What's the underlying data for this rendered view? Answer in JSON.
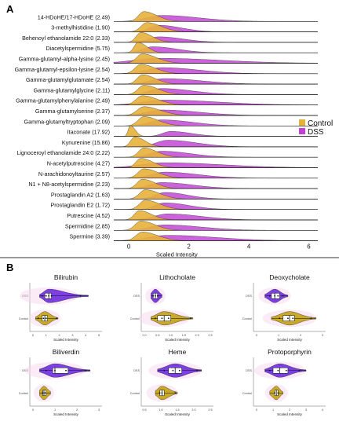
{
  "colors": {
    "control": "#e8b13a",
    "dss": "#c23fd6",
    "violin_dss": "#7b3fe4",
    "violin_control": "#c9a927",
    "baseline": "#000000"
  },
  "chart_data": [
    {
      "panel": "A",
      "type": "area",
      "title": "",
      "xlabel": "Scaled Intensity",
      "xlim": [
        -0.5,
        6.3
      ],
      "xticks": [
        0,
        2,
        4,
        6
      ],
      "legend": {
        "placement": "right",
        "entries": [
          "Control",
          "DSS"
        ]
      },
      "series": [
        {
          "label": "14-HDoHE/17-HDoHE (2.49)",
          "control": {
            "mode": 0.5,
            "width": 0.32,
            "height": 0.9
          },
          "dss": {
            "mode": 1.1,
            "width": 0.9,
            "height": 0.55
          }
        },
        {
          "label": "3-methylhistidine (1.90)",
          "control": {
            "mode": 0.6,
            "width": 0.35,
            "height": 0.85
          },
          "dss": {
            "mode": 1.0,
            "width": 0.55,
            "height": 0.6
          }
        },
        {
          "label": "Behenoyl ethanolamide 22:0 (2.33)",
          "control": {
            "mode": 0.4,
            "width": 0.28,
            "height": 0.9
          },
          "dss": {
            "mode": 1.0,
            "width": 0.6,
            "height": 0.5
          }
        },
        {
          "label": "Diacetylspermidine (5.75)",
          "control": {
            "mode": 0.3,
            "width": 0.22,
            "height": 0.95
          },
          "dss": {
            "mode": 0.8,
            "width": 0.6,
            "height": 0.55
          }
        },
        {
          "label": "Gamma-glutamyl-alpha-lysine (2.45)",
          "control": {
            "mode": 0.45,
            "width": 0.35,
            "height": 0.85
          },
          "dss": {
            "mode": 1.0,
            "width": 1.5,
            "height": 0.45
          }
        },
        {
          "label": "Gamma-glutamyl-epsilon-lysine (2.54)",
          "control": {
            "mode": 0.4,
            "width": 0.35,
            "height": 0.85
          },
          "dss": {
            "mode": 1.1,
            "width": 0.9,
            "height": 0.55
          }
        },
        {
          "label": "Gamma-glutamylglutamate (2.54)",
          "control": {
            "mode": 0.45,
            "width": 0.32,
            "height": 0.85
          },
          "dss": {
            "mode": 1.2,
            "width": 0.9,
            "height": 0.5
          }
        },
        {
          "label": "Gamma-glutamylglycine (2.11)",
          "control": {
            "mode": 0.5,
            "width": 0.35,
            "height": 0.85
          },
          "dss": {
            "mode": 1.1,
            "width": 0.75,
            "height": 0.55
          }
        },
        {
          "label": "Gamma-glutamylphenylalanine (2.49)",
          "control": {
            "mode": 0.45,
            "width": 0.38,
            "height": 0.85
          },
          "dss": {
            "mode": 1.2,
            "width": 1.3,
            "height": 0.45
          }
        },
        {
          "label": "Gamma-glutamylserine (2.37)",
          "control": {
            "mode": 0.5,
            "width": 0.4,
            "height": 0.8
          },
          "dss": {
            "mode": 1.1,
            "width": 0.9,
            "height": 0.5
          }
        },
        {
          "label": "Gamma-glutamyltryptophan (2.09)",
          "control": {
            "mode": 0.5,
            "width": 0.35,
            "height": 0.85
          },
          "dss": {
            "mode": 1.1,
            "width": 0.75,
            "height": 0.55
          }
        },
        {
          "label": "Itaconate (17.92)",
          "control": {
            "mode": 0.05,
            "width": 0.12,
            "height": 1.0
          },
          "dss": {
            "mode": 1.4,
            "width": 0.5,
            "height": 0.45
          }
        },
        {
          "label": "Kynurenine (15.86)",
          "control": {
            "mode": 0.2,
            "width": 0.25,
            "height": 0.9
          },
          "dss": {
            "mode": 1.3,
            "width": 0.7,
            "height": 0.6
          }
        },
        {
          "label": "Lignoceroyl ethanolamide 24:0 (2.22)",
          "control": {
            "mode": 0.5,
            "width": 0.32,
            "height": 0.85
          },
          "dss": {
            "mode": 1.1,
            "width": 0.7,
            "height": 0.55
          }
        },
        {
          "label": "N-acetylputrescine (4.27)",
          "control": {
            "mode": 0.4,
            "width": 0.3,
            "height": 0.85
          },
          "dss": {
            "mode": 1.2,
            "width": 1.4,
            "height": 0.45
          }
        },
        {
          "label": "N-arachidonoyltaurine (2.57)",
          "control": {
            "mode": 0.5,
            "width": 0.35,
            "height": 0.85
          },
          "dss": {
            "mode": 1.2,
            "width": 0.8,
            "height": 0.55
          }
        },
        {
          "label": "N1 + N8-acetylspermidine (2.23)",
          "control": {
            "mode": 0.45,
            "width": 0.32,
            "height": 0.85
          },
          "dss": {
            "mode": 1.1,
            "width": 0.75,
            "height": 0.55
          }
        },
        {
          "label": "Prostaglandin A2 (1.63)",
          "control": {
            "mode": 0.55,
            "width": 0.35,
            "height": 0.85
          },
          "dss": {
            "mode": 1.2,
            "width": 0.55,
            "height": 0.6
          }
        },
        {
          "label": "Prostaglandin E2 (1.72)",
          "control": {
            "mode": 0.55,
            "width": 0.35,
            "height": 0.85
          },
          "dss": {
            "mode": 1.2,
            "width": 0.6,
            "height": 0.6
          }
        },
        {
          "label": "Putrescine (4.52)",
          "control": {
            "mode": 0.35,
            "width": 0.3,
            "height": 0.85
          },
          "dss": {
            "mode": 1.3,
            "width": 0.8,
            "height": 0.55
          }
        },
        {
          "label": "Spermidine (2.85)",
          "control": {
            "mode": 0.4,
            "width": 0.35,
            "height": 0.85
          },
          "dss": {
            "mode": 1.2,
            "width": 0.9,
            "height": 0.5
          }
        },
        {
          "label": "Spermine (3.39)",
          "control": {
            "mode": 0.45,
            "width": 0.38,
            "height": 0.8
          },
          "dss": {
            "mode": 1.3,
            "width": 1.2,
            "height": 0.5
          }
        }
      ]
    },
    {
      "panel": "B",
      "type": "violin",
      "xlabel": "Scaled Intensity",
      "groups": [
        "DSS",
        "Control"
      ],
      "plots": [
        {
          "title": "Bilirubin",
          "xlim": [
            0,
            5
          ],
          "xticks": [
            "0",
            "1",
            "2",
            "3",
            "4",
            "5"
          ],
          "dss": {
            "median": 1.2,
            "q1": 0.9,
            "q3": 1.4,
            "min": 0.5,
            "max": 4.2,
            "points": [
              0.7,
              1.0,
              1.2,
              1.4,
              3.6
            ]
          },
          "control": {
            "median": 0.9,
            "q1": 0.7,
            "q3": 1.1,
            "min": 0.2,
            "max": 1.9,
            "points": [
              0.4,
              0.8,
              1.0,
              1.8
            ]
          }
        },
        {
          "title": "Lithocholate",
          "xlim": [
            0,
            3
          ],
          "xticks": [
            "0.0",
            "0.5",
            "1.0",
            "1.5",
            "2.0",
            "2.5"
          ],
          "dss": {
            "median": 0.5,
            "q1": 0.4,
            "q3": 0.6,
            "min": 0.3,
            "max": 0.8,
            "points": [
              0.4,
              0.5,
              0.6
            ]
          },
          "control": {
            "median": 0.9,
            "q1": 0.6,
            "q3": 1.2,
            "min": 0.3,
            "max": 2.2,
            "points": [
              0.5,
              0.8,
              1.1,
              2.1
            ]
          }
        },
        {
          "title": "Deoxycholate",
          "xlim": [
            0,
            4
          ],
          "xticks": [
            "0",
            "1",
            "2",
            "3"
          ],
          "dss": {
            "median": 1.1,
            "q1": 0.9,
            "q3": 1.4,
            "min": 0.5,
            "max": 1.9,
            "points": [
              0.8,
              1.1,
              1.3,
              1.6
            ]
          },
          "control": {
            "median": 2.0,
            "q1": 1.6,
            "q3": 2.3,
            "min": 0.9,
            "max": 3.6,
            "points": [
              1.4,
              1.9,
              2.2,
              3.3
            ]
          }
        },
        {
          "title": "Biliverdin",
          "xlim": [
            0,
            3
          ],
          "xticks": [
            "0",
            "1",
            "2",
            "3"
          ],
          "dss": {
            "median": 1.0,
            "q1": 0.9,
            "q3": 1.6,
            "min": 0.3,
            "max": 2.6,
            "points": [
              0.6,
              1.0,
              1.5,
              2.4
            ]
          },
          "control": {
            "median": 0.5,
            "q1": 0.45,
            "q3": 0.6,
            "min": 0.3,
            "max": 0.8,
            "points": [
              0.45,
              0.55
            ]
          }
        },
        {
          "title": "Heme",
          "xlim": [
            0,
            3
          ],
          "xticks": [
            "0.5",
            "1.0",
            "1.5",
            "2.0",
            "2.5"
          ],
          "dss": {
            "median": 1.4,
            "q1": 1.1,
            "q3": 1.7,
            "min": 0.6,
            "max": 2.6,
            "points": [
              0.9,
              1.3,
              1.6,
              2.4
            ]
          },
          "control": {
            "median": 0.8,
            "q1": 0.7,
            "q3": 0.9,
            "min": 0.5,
            "max": 1.5,
            "points": [
              0.7,
              0.8,
              1.4
            ]
          }
        },
        {
          "title": "Protoporphyrin",
          "xlim": [
            0,
            4
          ],
          "xticks": [
            "0",
            "1",
            "2",
            "3",
            "4"
          ],
          "dss": {
            "median": 1.4,
            "q1": 1.0,
            "q3": 1.9,
            "min": 0.5,
            "max": 3.0,
            "points": [
              0.8,
              1.3,
              1.8,
              2.6
            ]
          },
          "control": {
            "median": 1.2,
            "q1": 1.1,
            "q3": 1.3,
            "min": 0.8,
            "max": 1.6,
            "points": [
              1.1,
              1.3
            ]
          }
        }
      ]
    }
  ],
  "panel_labels": [
    "A",
    "B"
  ]
}
